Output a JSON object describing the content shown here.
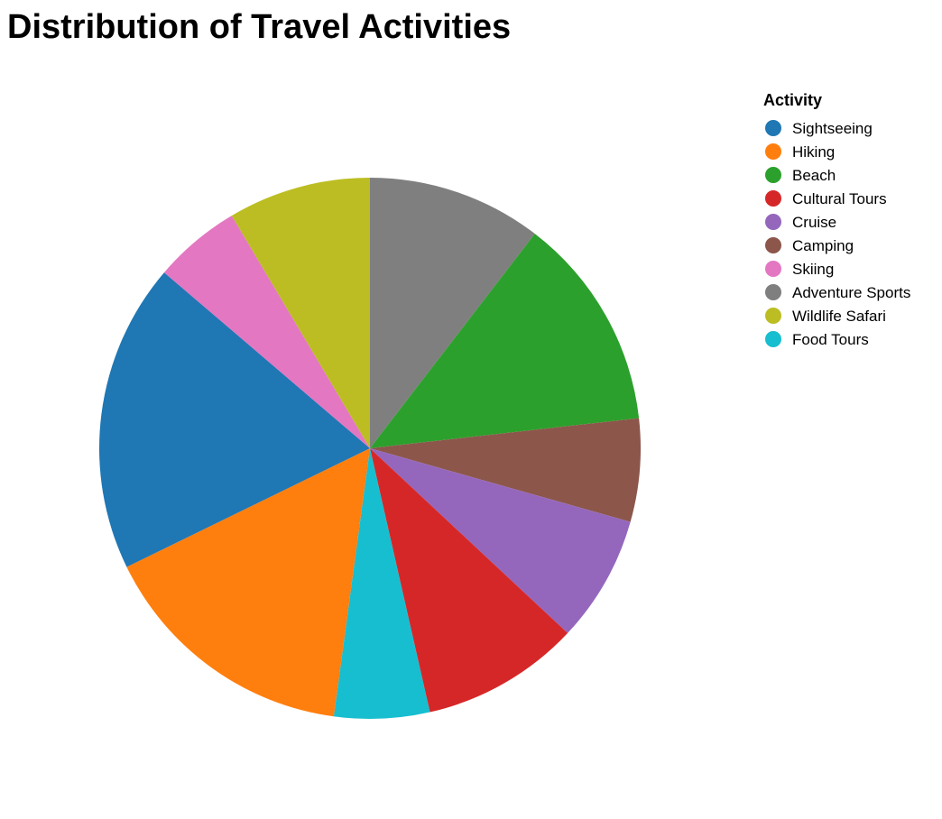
{
  "chart_data": {
    "type": "pie",
    "title": "Distribution of Travel Activities",
    "legend_title": "Activity",
    "legend_position": "right",
    "slices": [
      {
        "label": "Sightseeing",
        "value": 19.5,
        "color": "#1f77b4"
      },
      {
        "label": "Hiking",
        "value": 16.5,
        "color": "#ff7f0e"
      },
      {
        "label": "Beach",
        "value": 13.5,
        "color": "#2ca02c"
      },
      {
        "label": "Cultural Tours",
        "value": 10,
        "color": "#d62728"
      },
      {
        "label": "Cruise",
        "value": 8,
        "color": "#9467bd"
      },
      {
        "label": "Camping",
        "value": 6.5,
        "color": "#8c564b"
      },
      {
        "label": "Skiing",
        "value": 5.5,
        "color": "#e377c2"
      },
      {
        "label": "Adventure Sports",
        "value": 11,
        "color": "#7f7f7f"
      },
      {
        "label": "Wildlife Safari",
        "value": 9,
        "color": "#bcbd22"
      },
      {
        "label": "Food Tours",
        "value": 6,
        "color": "#17becf"
      }
    ],
    "draw_order": [
      "Adventure Sports",
      "Beach",
      "Camping",
      "Cruise",
      "Cultural Tours",
      "Food Tours",
      "Hiking",
      "Sightseeing",
      "Skiing",
      "Wildlife Safari"
    ]
  }
}
